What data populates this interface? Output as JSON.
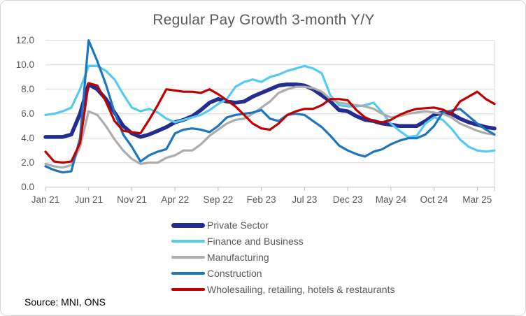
{
  "source_label": "Source: MNI, ONS",
  "chart_data": {
    "type": "line",
    "title": "Regular Pay Growth 3-month Y/Y",
    "x_domain_start": "Jan 2021",
    "x_domain_end": "May 2025",
    "x_interval": "monthly",
    "x_tick_labels": [
      "Jan 21",
      "Jun 21",
      "Nov 21",
      "Apr 22",
      "Sep 22",
      "Feb 23",
      "Jul 23",
      "Dec 23",
      "May 24",
      "Oct 24",
      "Mar 25"
    ],
    "x_tick_months": [
      0,
      5,
      10,
      15,
      20,
      25,
      30,
      35,
      40,
      45,
      50
    ],
    "ylim": [
      0,
      12
    ],
    "y_ticks": [
      0,
      2,
      4,
      6,
      8,
      10,
      12
    ],
    "grid": "horizontal",
    "legend_position": "bottom",
    "colors": {
      "grid": "#D9D9D9",
      "axis": "#BFBFBF",
      "text": "#595959"
    },
    "series": [
      {
        "name": "Private Sector",
        "color": "#232C91",
        "width": 5.5,
        "values": [
          4.1,
          4.1,
          4.1,
          4.3,
          6.0,
          8.4,
          8.0,
          7.2,
          6.1,
          5.0,
          4.4,
          4.1,
          4.3,
          4.6,
          4.9,
          5.3,
          5.5,
          5.8,
          6.3,
          6.9,
          7.2,
          7.0,
          6.9,
          7.0,
          7.4,
          7.7,
          8.0,
          8.3,
          8.4,
          8.4,
          8.3,
          8.0,
          7.5,
          7.0,
          6.3,
          6.2,
          5.8,
          5.5,
          5.4,
          5.2,
          5.1,
          5.0,
          5.0,
          5.0,
          5.4,
          5.9,
          6.1,
          6.0,
          5.6,
          5.3,
          5.1,
          4.9,
          4.8
        ]
      },
      {
        "name": "Finance and Business",
        "color": "#53CBF0",
        "width": 3.2,
        "values": [
          5.9,
          6.0,
          6.2,
          6.5,
          8.0,
          9.9,
          9.9,
          9.5,
          8.8,
          7.6,
          6.5,
          6.2,
          6.4,
          6.1,
          5.6,
          5.3,
          5.5,
          5.7,
          5.9,
          6.3,
          6.8,
          7.2,
          8.2,
          8.6,
          8.8,
          8.6,
          9.0,
          9.2,
          9.5,
          9.7,
          9.9,
          9.7,
          9.3,
          7.5,
          6.7,
          6.6,
          6.6,
          6.7,
          6.9,
          6.1,
          5.2,
          4.6,
          4.1,
          4.2,
          5.2,
          5.7,
          5.5,
          4.8,
          3.9,
          3.3,
          3.0,
          2.9,
          3.0
        ]
      },
      {
        "name": "Manufacturing",
        "color": "#ACACAC",
        "width": 3.2,
        "values": [
          1.9,
          1.7,
          1.6,
          1.8,
          3.3,
          6.2,
          5.9,
          5.0,
          3.9,
          3.0,
          2.3,
          1.9,
          2.0,
          2.0,
          2.4,
          2.6,
          3.0,
          3.0,
          3.5,
          4.2,
          4.7,
          5.2,
          5.5,
          5.6,
          6.0,
          6.5,
          7.0,
          7.7,
          8.0,
          8.2,
          8.2,
          8.1,
          7.8,
          7.2,
          6.9,
          6.8,
          6.7,
          6.6,
          6.4,
          6.0,
          5.7,
          5.8,
          6.0,
          6.1,
          6.2,
          6.1,
          6.0,
          5.7,
          5.2,
          4.9,
          4.6,
          4.4,
          4.3
        ]
      },
      {
        "name": "Construction",
        "color": "#1C75BE",
        "width": 3.2,
        "values": [
          1.7,
          1.4,
          1.2,
          1.3,
          4.0,
          12.0,
          10.3,
          8.4,
          6.1,
          4.3,
          3.3,
          2.1,
          2.6,
          2.9,
          3.1,
          4.4,
          4.7,
          4.8,
          4.7,
          4.5,
          5.0,
          5.7,
          5.9,
          6.0,
          6.1,
          6.3,
          5.6,
          5.4,
          5.9,
          6.0,
          5.9,
          5.4,
          4.9,
          4.2,
          3.4,
          3.0,
          2.7,
          2.5,
          2.9,
          3.1,
          3.5,
          3.8,
          4.0,
          4.0,
          4.3,
          5.0,
          6.1,
          6.25,
          6.4,
          5.8,
          5.2,
          4.7,
          4.3
        ]
      },
      {
        "name": "Wholesailing, retailing, hotels & restaurants",
        "color": "#C00000",
        "width": 3.2,
        "values": [
          2.9,
          2.1,
          2.0,
          2.1,
          3.6,
          8.5,
          8.3,
          7.0,
          5.4,
          4.6,
          4.5,
          4.4,
          5.5,
          6.7,
          8.0,
          7.9,
          7.8,
          7.8,
          7.7,
          8.0,
          7.6,
          7.1,
          6.6,
          5.9,
          5.2,
          4.8,
          4.7,
          5.2,
          5.9,
          6.2,
          6.4,
          6.4,
          6.7,
          7.2,
          7.2,
          7.1,
          6.3,
          5.7,
          5.4,
          5.3,
          5.5,
          5.9,
          6.2,
          6.4,
          6.45,
          6.5,
          6.35,
          6.0,
          7.0,
          7.4,
          7.8,
          7.2,
          6.8
        ]
      }
    ]
  }
}
